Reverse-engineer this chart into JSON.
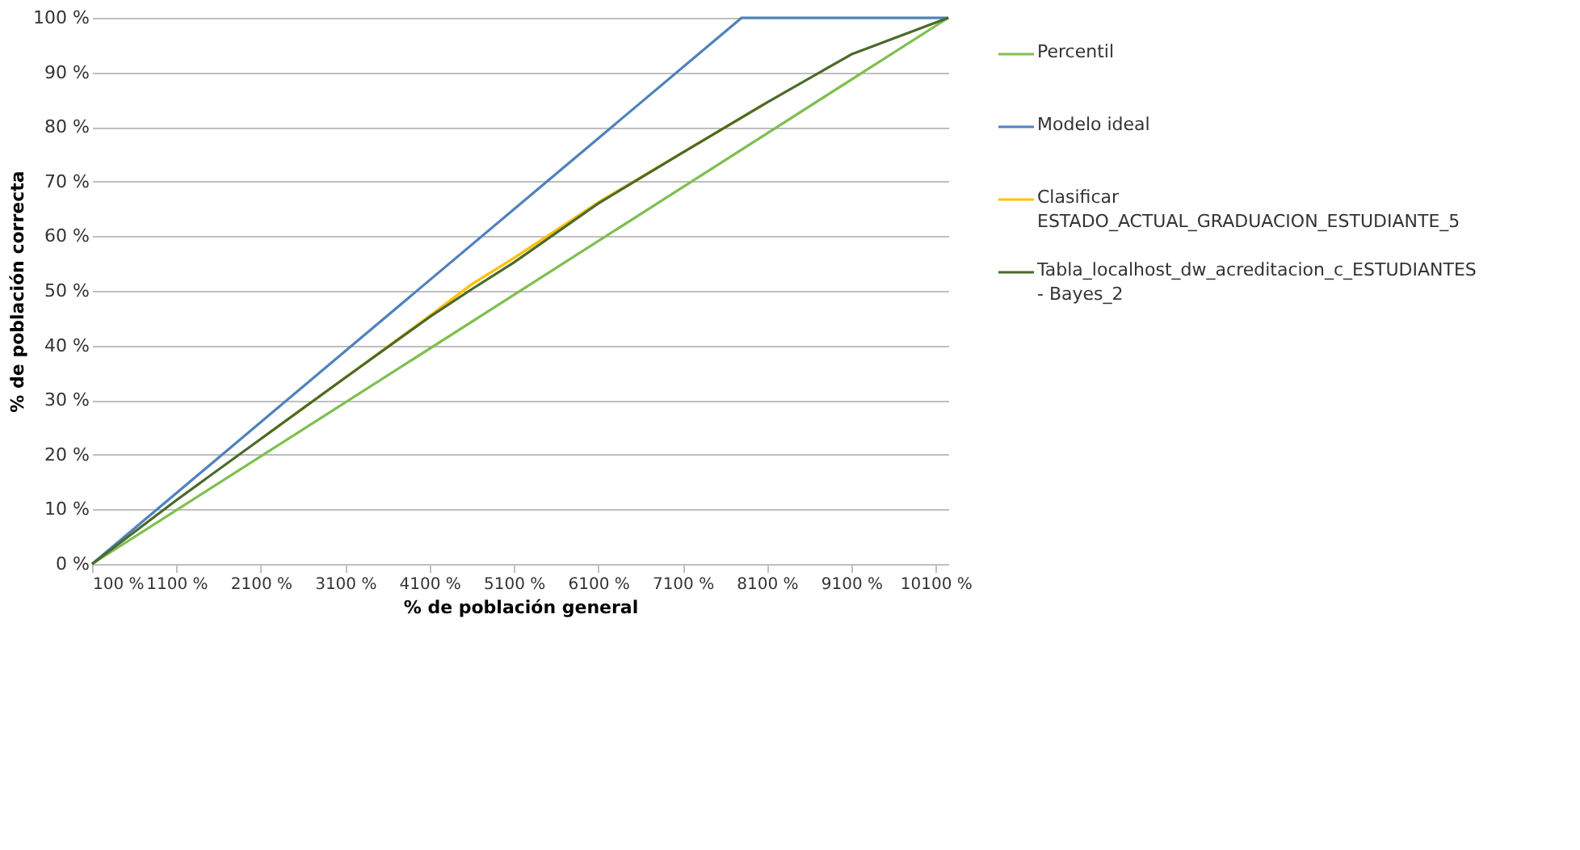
{
  "chart_data": {
    "type": "line",
    "xlabel": "% de población general",
    "ylabel": "% de población correcta",
    "xlim": [
      100,
      10250
    ],
    "ylim": [
      0,
      100
    ],
    "xticks": [
      {
        "value": 100,
        "label": "100 %"
      },
      {
        "value": 1100,
        "label": "1100 %"
      },
      {
        "value": 2100,
        "label": "2100 %"
      },
      {
        "value": 3100,
        "label": "3100 %"
      },
      {
        "value": 4100,
        "label": "4100 %"
      },
      {
        "value": 5100,
        "label": "5100 %"
      },
      {
        "value": 6100,
        "label": "6100 %"
      },
      {
        "value": 7100,
        "label": "7100 %"
      },
      {
        "value": 8100,
        "label": "8100 %"
      },
      {
        "value": 9100,
        "label": "9100 %"
      },
      {
        "value": 10100,
        "label": "10100 %"
      }
    ],
    "yticks": [
      {
        "value": 0,
        "label": "0 %"
      },
      {
        "value": 10,
        "label": "10 %"
      },
      {
        "value": 20,
        "label": "20 %"
      },
      {
        "value": 30,
        "label": "30 %"
      },
      {
        "value": 40,
        "label": "40 %"
      },
      {
        "value": 50,
        "label": "50 %"
      },
      {
        "value": 60,
        "label": "60 %"
      },
      {
        "value": 70,
        "label": "70 %"
      },
      {
        "value": 80,
        "label": "80 %"
      },
      {
        "value": 90,
        "label": "90 %"
      },
      {
        "value": 100,
        "label": "100 %"
      }
    ],
    "grid": "y",
    "legend": "right",
    "line_style": "solid",
    "marker": "none",
    "series": [
      {
        "name": "Percentil",
        "color": "#7fbf4f",
        "x": [
          100,
          10250
        ],
        "values": [
          0,
          100
        ]
      },
      {
        "name": "Modelo ideal",
        "color": "#4f81bd",
        "x": [
          100,
          7800,
          10250
        ],
        "values": [
          0,
          100,
          100
        ]
      },
      {
        "name": "Clasificar ESTADO_ACTUAL_GRADUACION_ESTUDIANTE_5",
        "color": "#ffc000",
        "x": [
          2100,
          3100,
          4100,
          4600,
          5100,
          6100,
          7100,
          8100
        ],
        "values": [
          22.9,
          34.1,
          45.4,
          51.2,
          56,
          66.2,
          75.3,
          84.5
        ]
      },
      {
        "name": "Tabla_localhost_dw_acreditacion_c_ESTUDIANTES - Bayes_2",
        "color": "#4a6a2a",
        "x": [
          100,
          1100,
          2100,
          3100,
          4100,
          4600,
          5100,
          6100,
          7100,
          8100,
          9100,
          10250
        ],
        "values": [
          0,
          11.7,
          22.9,
          34.1,
          45.2,
          50.3,
          55.2,
          66,
          75.3,
          84.5,
          93.3,
          100
        ]
      }
    ]
  }
}
